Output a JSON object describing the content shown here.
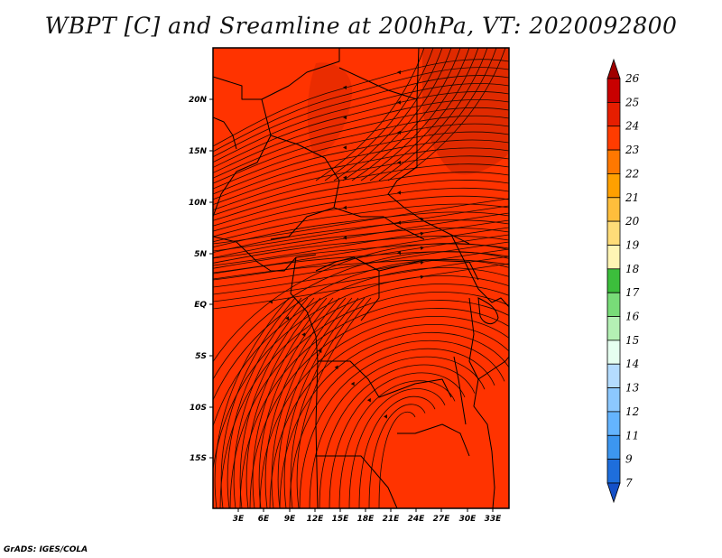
{
  "title": "WBPT [C] and Sreamline at 200hPa, VT: 2020092800",
  "credit": "GrADS: IGES/COLA",
  "map": {
    "lat_labels": [
      "20N",
      "15N",
      "10N",
      "5N",
      "EQ",
      "5S",
      "10S",
      "15S"
    ],
    "lon_labels": [
      "3E",
      "6E",
      "9E",
      "12E",
      "15E",
      "18E",
      "21E",
      "24E",
      "27E",
      "30E",
      "33E"
    ],
    "lat_range": [
      -19.5,
      24.5
    ],
    "lon_range": [
      0,
      35
    ],
    "fill_color": "#ff3300",
    "warm_patch_color": "#e02a00"
  },
  "colorbar": {
    "labels": [
      "26",
      "25",
      "24",
      "23",
      "22",
      "21",
      "20",
      "19",
      "18",
      "17",
      "16",
      "15",
      "14",
      "13",
      "12",
      "11",
      "9",
      "7"
    ],
    "colors": [
      "#a00000",
      "#c80000",
      "#e61e00",
      "#ff3c00",
      "#ff7800",
      "#ffa000",
      "#ffbe3c",
      "#ffdc78",
      "#fff5b4",
      "#3cbe3c",
      "#78dc78",
      "#b4f0b4",
      "#e6fff0",
      "#b4dcff",
      "#8cc8ff",
      "#64b4ff",
      "#3c96f0",
      "#1e6edc",
      "#1450c8"
    ]
  }
}
